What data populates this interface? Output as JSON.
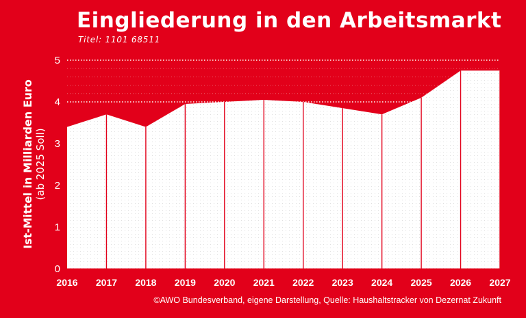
{
  "title": "Eingliederung in den Arbeitsmarkt",
  "subtitle": "Titel: 1101 68511",
  "ylabel_line1": "Ist-Mittel in Milliarden Euro",
  "ylabel_line2": "(ab 2025 Soll)",
  "footer": "©AWO Bundesverband, eigene Darstellung, Quelle: Haushaltstracker von Dezernat Zukunft",
  "colors": {
    "background": "#e2001a",
    "area_fill": "#ffffff",
    "text": "#ffffff"
  },
  "chart_data": {
    "type": "area",
    "title": "Eingliederung in den Arbeitsmarkt",
    "xlabel": "",
    "ylabel": "Ist-Mittel in Milliarden Euro (ab 2025 Soll)",
    "x": [
      "2016",
      "2017",
      "2018",
      "2019",
      "2020",
      "2021",
      "2022",
      "2023",
      "2024",
      "2025",
      "2026",
      "2027"
    ],
    "values": [
      3.4,
      3.7,
      3.4,
      3.95,
      4.0,
      4.05,
      4.0,
      3.85,
      3.7,
      4.1,
      4.75,
      4.75
    ],
    "ylim": [
      0,
      5
    ],
    "yticks": [
      0,
      1,
      2,
      3,
      4,
      5
    ],
    "grid": "dotted horizontal lines above the area",
    "legend": "none"
  }
}
